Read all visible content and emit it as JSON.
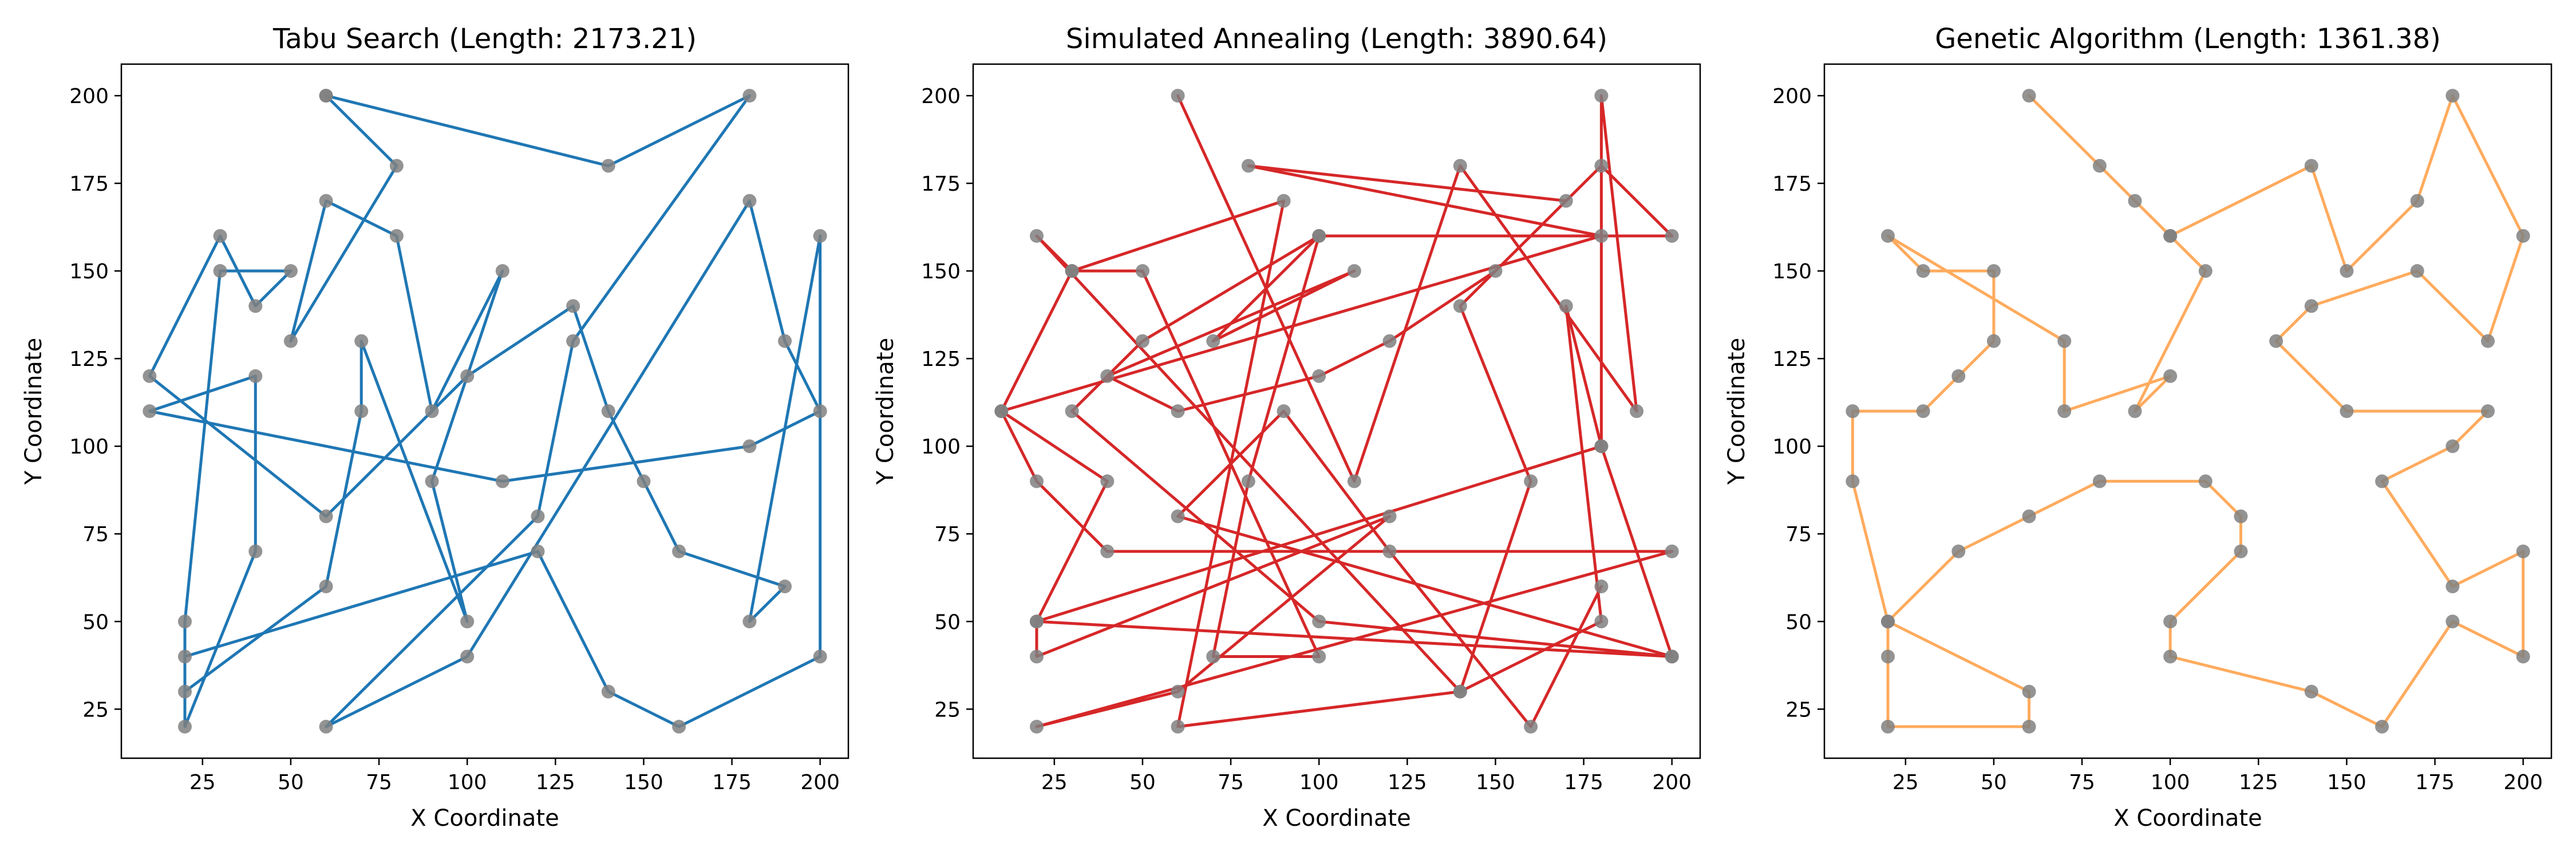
{
  "chart_data": [
    {
      "type": "line",
      "title": "Tabu Search (Length: 2173.21)",
      "xlabel": "X Coordinate",
      "ylabel": "Y Coordinate",
      "xlim": [
        2,
        208
      ],
      "ylim": [
        11,
        209
      ],
      "xticks": [
        25,
        50,
        75,
        100,
        125,
        150,
        175,
        200
      ],
      "yticks": [
        25,
        50,
        75,
        100,
        125,
        150,
        175,
        200
      ],
      "grid": false,
      "line_color": "#1f77b4",
      "point_color": "#808080",
      "x": [
        60,
        140,
        180,
        130,
        120,
        60,
        100,
        180,
        190,
        200,
        180,
        110,
        10,
        40,
        40,
        20,
        20,
        30,
        50,
        40,
        30,
        10,
        60,
        100,
        130,
        140,
        150,
        160,
        190,
        180,
        200,
        200,
        160,
        140,
        120,
        20,
        20,
        60,
        70,
        70,
        100,
        90,
        110,
        90,
        80,
        60,
        50,
        80,
        60
      ],
      "y": [
        200,
        180,
        200,
        130,
        80,
        20,
        40,
        170,
        130,
        110,
        100,
        90,
        110,
        120,
        70,
        20,
        50,
        150,
        150,
        140,
        160,
        120,
        80,
        120,
        140,
        110,
        90,
        70,
        60,
        50,
        160,
        40,
        20,
        30,
        70,
        40,
        30,
        60,
        110,
        130,
        50,
        90,
        150,
        110,
        160,
        170,
        130,
        180,
        200
      ]
    },
    {
      "type": "line",
      "title": "Simulated Annealing (Length: 3890.64)",
      "xlabel": "X Coordinate",
      "ylabel": "Y Coordinate",
      "xlim": [
        2,
        208
      ],
      "ylim": [
        11,
        209
      ],
      "xticks": [
        25,
        50,
        75,
        100,
        125,
        150,
        175,
        200
      ],
      "yticks": [
        25,
        50,
        75,
        100,
        125,
        150,
        175,
        200
      ],
      "grid": false,
      "line_color": "#d62728",
      "point_color": "#808080",
      "x": [
        60,
        110,
        140,
        190,
        180,
        180,
        20,
        20,
        120,
        60,
        20,
        200,
        40,
        20,
        10,
        180,
        80,
        170,
        150,
        120,
        100,
        60,
        40,
        110,
        70,
        100,
        200,
        180,
        140,
        160,
        140,
        60,
        90,
        30,
        10,
        40,
        20,
        200,
        100,
        30,
        50,
        100,
        80,
        70,
        100,
        50,
        30,
        20,
        140,
        180,
        170,
        180,
        200,
        60,
        90,
        120,
        160,
        180
      ],
      "y": [
        200,
        90,
        180,
        110,
        200,
        100,
        50,
        40,
        80,
        30,
        20,
        70,
        70,
        90,
        110,
        160,
        180,
        170,
        150,
        130,
        120,
        110,
        120,
        150,
        130,
        160,
        160,
        180,
        140,
        90,
        30,
        20,
        170,
        150,
        110,
        90,
        50,
        40,
        50,
        110,
        130,
        160,
        90,
        40,
        40,
        150,
        150,
        160,
        30,
        50,
        140,
        100,
        40,
        80,
        110,
        70,
        20,
        60
      ]
    },
    {
      "type": "line",
      "title": "Genetic Algorithm (Length: 1361.38)",
      "xlabel": "X Coordinate",
      "ylabel": "Y Coordinate",
      "xlim": [
        2,
        208
      ],
      "ylim": [
        11,
        209
      ],
      "xticks": [
        25,
        50,
        75,
        100,
        125,
        150,
        175,
        200
      ],
      "yticks": [
        25,
        50,
        75,
        100,
        125,
        150,
        175,
        200
      ],
      "grid": false,
      "line_color": "#ffab5e",
      "point_color": "#808080",
      "x": [
        60,
        80,
        90,
        100,
        140,
        150,
        170,
        180,
        200,
        190,
        170,
        140,
        130,
        150,
        190,
        180,
        160,
        180,
        200,
        200,
        180,
        160,
        140,
        100,
        100,
        120,
        120,
        110,
        80,
        60,
        40,
        20,
        20,
        20,
        60,
        60,
        20,
        10,
        10,
        30,
        40,
        50,
        50,
        30,
        20,
        70,
        70,
        100,
        90,
        110,
        100
      ],
      "y": [
        200,
        180,
        170,
        160,
        180,
        150,
        170,
        200,
        160,
        130,
        150,
        140,
        130,
        110,
        110,
        100,
        90,
        60,
        70,
        40,
        50,
        20,
        30,
        40,
        50,
        70,
        80,
        90,
        90,
        80,
        70,
        50,
        40,
        20,
        20,
        30,
        50,
        90,
        110,
        110,
        120,
        130,
        150,
        150,
        160,
        130,
        110,
        120,
        110,
        150,
        160
      ]
    }
  ]
}
